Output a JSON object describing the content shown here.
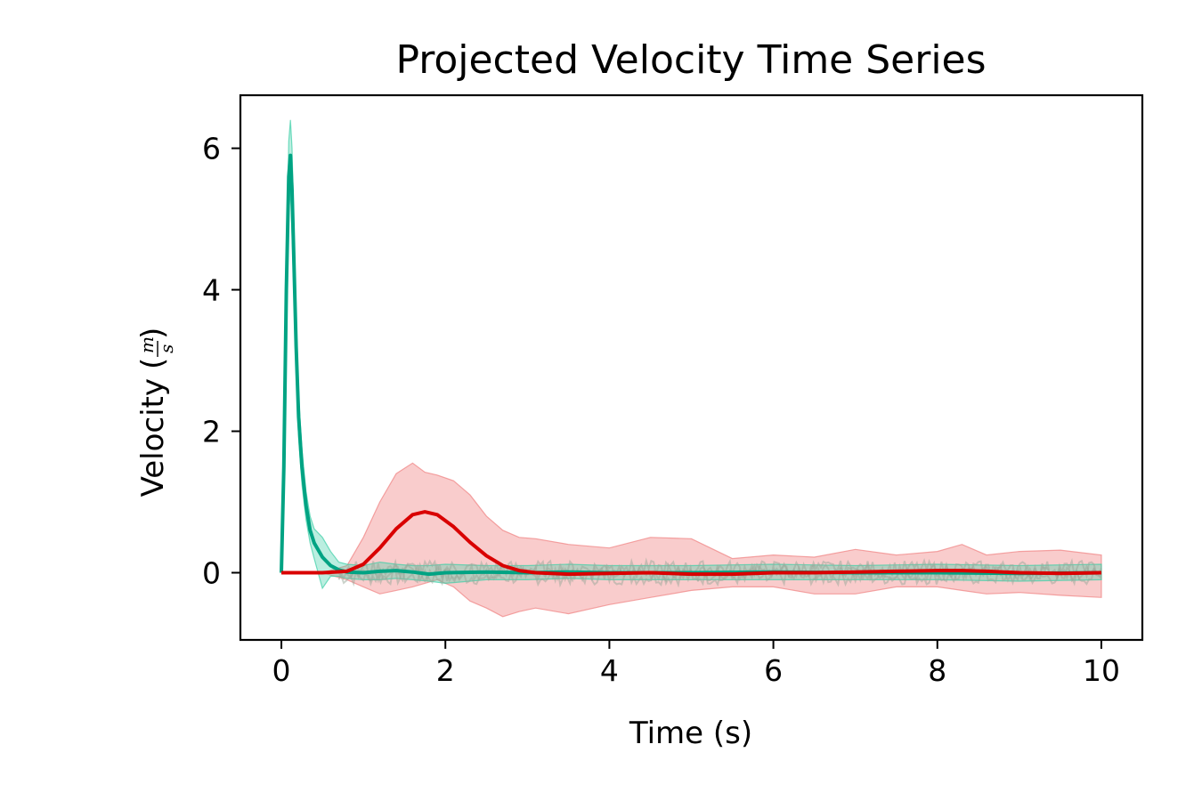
{
  "chart_data": {
    "type": "line",
    "title": "Projected Velocity Time Series",
    "xlabel": "Time (s)",
    "ylabel": "Velocity",
    "ylabel_unit_num": "m",
    "ylabel_unit_den": "s",
    "xlim": [
      -0.5,
      10.5
    ],
    "ylim": [
      -0.95,
      6.75
    ],
    "xticks": [
      0,
      2,
      4,
      6,
      8,
      10
    ],
    "yticks": [
      0,
      2,
      4,
      6
    ],
    "grid": false,
    "colors": {
      "green": "#00a383",
      "red": "#d90000",
      "green_band": "#3ccfa6",
      "red_band": "#f08080",
      "mid_band": "#9aa89a"
    },
    "series": [
      {
        "color": "#00a383",
        "x": [
          0,
          0.03,
          0.06,
          0.09,
          0.11,
          0.13,
          0.15,
          0.18,
          0.21,
          0.25,
          0.3,
          0.35,
          0.4,
          0.5,
          0.6,
          0.7,
          0.8,
          1.0,
          1.2,
          1.4,
          1.6,
          1.8,
          2.0,
          2.5,
          3.0,
          3.5,
          4.0,
          5.0,
          6.0,
          7.0,
          8.0,
          9.0,
          10.0
        ],
        "y": [
          0,
          1.5,
          4.0,
          5.6,
          5.9,
          5.4,
          4.5,
          3.2,
          2.2,
          1.5,
          0.95,
          0.6,
          0.42,
          0.22,
          0.1,
          0.04,
          0.01,
          0.0,
          0.02,
          0.03,
          0.01,
          -0.02,
          0.0,
          0.01,
          0.0,
          0.01,
          0.0,
          0.0,
          0.01,
          0.0,
          0.0,
          -0.01,
          0.0
        ],
        "upper": [
          0,
          1.7,
          4.4,
          6.1,
          6.4,
          6.0,
          5.0,
          3.6,
          2.5,
          1.75,
          1.15,
          0.8,
          0.62,
          0.5,
          0.3,
          0.15,
          0.12,
          0.1,
          0.15,
          0.12,
          0.1,
          0.1,
          0.12,
          0.1,
          0.1,
          0.12,
          0.1,
          0.1,
          0.12,
          0.1,
          0.12,
          0.1,
          0.12
        ],
        "lower": [
          0,
          1.3,
          3.6,
          5.1,
          5.4,
          4.8,
          4.0,
          2.8,
          1.9,
          1.25,
          0.75,
          0.42,
          0.2,
          -0.22,
          -0.05,
          -0.05,
          -0.08,
          -0.1,
          -0.1,
          -0.08,
          -0.1,
          -0.12,
          -0.15,
          -0.1,
          -0.1,
          -0.08,
          -0.1,
          -0.1,
          -0.1,
          -0.1,
          -0.1,
          -0.12,
          -0.1
        ]
      },
      {
        "color": "#d90000",
        "x": [
          0,
          0.5,
          0.8,
          1.0,
          1.2,
          1.4,
          1.6,
          1.75,
          1.9,
          2.1,
          2.3,
          2.5,
          2.7,
          2.9,
          3.1,
          3.5,
          4.0,
          4.5,
          5.0,
          5.5,
          6.0,
          6.5,
          7.0,
          7.5,
          8.0,
          8.3,
          8.6,
          9.0,
          9.5,
          10.0
        ],
        "y": [
          0,
          0.0,
          0.02,
          0.12,
          0.35,
          0.62,
          0.82,
          0.86,
          0.82,
          0.65,
          0.43,
          0.24,
          0.1,
          0.03,
          0.0,
          -0.02,
          -0.01,
          0.0,
          -0.02,
          -0.02,
          0.0,
          0.0,
          0.01,
          0.02,
          0.03,
          0.03,
          0.02,
          0.0,
          -0.01,
          0.0
        ],
        "upper": [
          0,
          0.0,
          0.1,
          0.5,
          1.0,
          1.4,
          1.55,
          1.42,
          1.38,
          1.3,
          1.1,
          0.8,
          0.6,
          0.5,
          0.48,
          0.4,
          0.35,
          0.5,
          0.48,
          0.2,
          0.25,
          0.22,
          0.33,
          0.25,
          0.3,
          0.4,
          0.25,
          0.3,
          0.32,
          0.25
        ],
        "lower": [
          0,
          0.0,
          -0.1,
          -0.2,
          -0.3,
          -0.25,
          -0.2,
          -0.15,
          -0.1,
          -0.2,
          -0.4,
          -0.5,
          -0.62,
          -0.55,
          -0.5,
          -0.58,
          -0.45,
          -0.35,
          -0.25,
          -0.2,
          -0.2,
          -0.3,
          -0.3,
          -0.2,
          -0.2,
          -0.25,
          -0.3,
          -0.28,
          -0.32,
          -0.35
        ]
      }
    ]
  }
}
